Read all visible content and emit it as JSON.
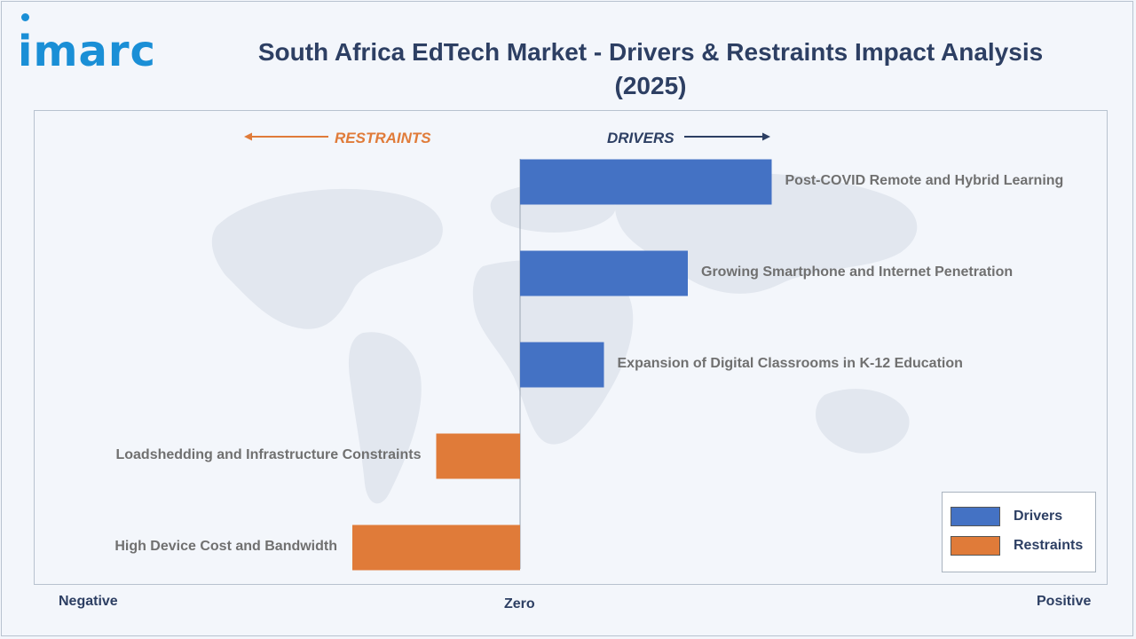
{
  "header": {
    "logo_text": "imarc",
    "title": "South Africa EdTech Market - Drivers & Restraints Impact Analysis (2025)"
  },
  "colors": {
    "drivers": "#4472c4",
    "restraints": "#e07b39",
    "title": "#2d3f63",
    "logo": "#1a8fd6"
  },
  "chart_data": {
    "type": "bar",
    "orientation": "horizontal",
    "direction_labels": {
      "left": "RESTRAINTS",
      "right": "DRIVERS"
    },
    "axis_labels": {
      "negative": "Negative",
      "zero": "Zero",
      "positive": "Positive"
    },
    "categories": [
      "Post-COVID Remote and Hybrid Learning",
      "Growing Smartphone and Internet Penetration",
      "Expansion of Digital Classrooms in K-12 Education",
      "Loadshedding and Infrastructure Constraints",
      "High Device Cost and Bandwidth"
    ],
    "values": [
      3,
      2,
      1,
      -1,
      -2
    ],
    "series_type": [
      "Drivers",
      "Drivers",
      "Drivers",
      "Restraints",
      "Restraints"
    ],
    "xlim": [
      -6,
      6
    ],
    "grid": false,
    "legend": {
      "position": "bottom-right",
      "entries": [
        "Drivers",
        "Restraints"
      ]
    }
  }
}
